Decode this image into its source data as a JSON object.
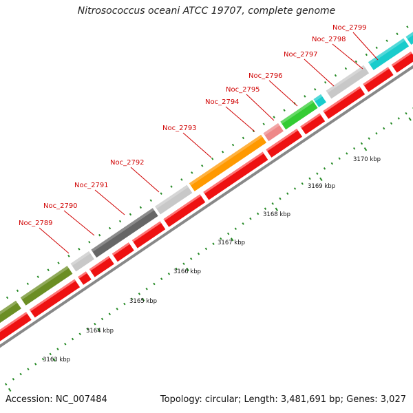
{
  "title": "Nitrosococcus oceani ATCC 19707, complete genome",
  "footer": {
    "accession": "Accession: NC_007484",
    "topology": "Topology: circular; Length: 3,481,691 bp; Genes: 3,027"
  },
  "colors": {
    "cds": "#ee1111",
    "backbone": "#888888",
    "tick": "#228822",
    "label": "#d00000"
  },
  "scale_labels": [
    "3163 kbp",
    "3164 kbp",
    "3165 kbp",
    "3166 kbp",
    "3167 kbp",
    "3168 kbp",
    "3169 kbp",
    "3170 kbp"
  ],
  "gene_labels": [
    "Noc_2789",
    "Noc_2790",
    "Noc_2791",
    "Noc_2792",
    "Noc_2793",
    "Noc_2794",
    "Noc_2795",
    "Noc_2796",
    "Noc_2797",
    "Noc_2798",
    "Noc_2799"
  ],
  "cog_segment_colors": [
    "olive-green",
    "olive-green",
    "light-gray",
    "dark-gray",
    "light-gray",
    "orange",
    "salmon",
    "green",
    "cyan",
    "light-gray",
    "cyan",
    "cyan"
  ]
}
